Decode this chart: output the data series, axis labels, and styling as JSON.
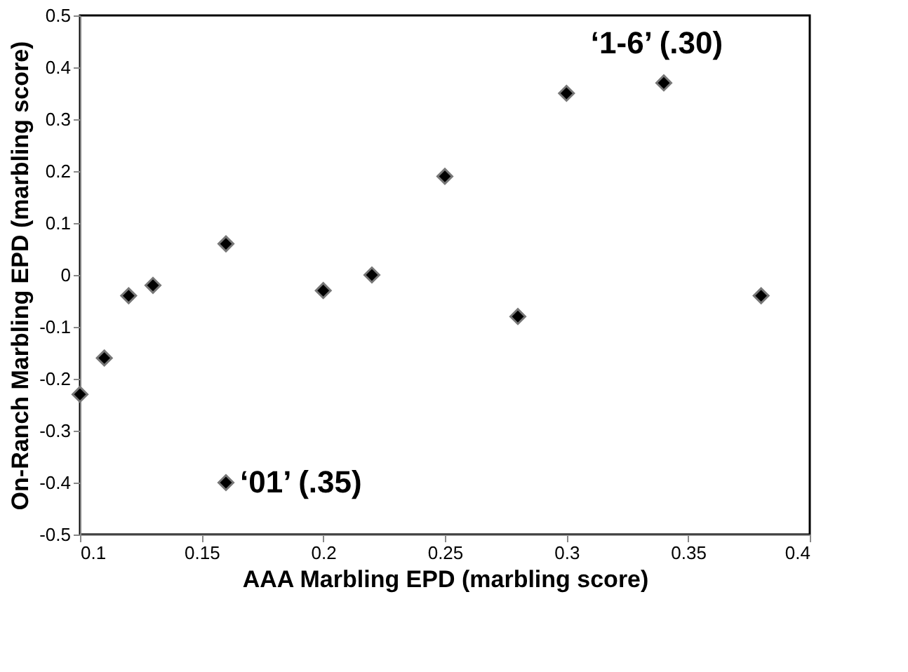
{
  "chart_data": {
    "type": "scatter",
    "xlabel": "AAA Marbling EPD (marbling score)",
    "ylabel": "On-Ranch Marbling EPD (marbling score)",
    "x": [
      0.1,
      0.11,
      0.12,
      0.13,
      0.16,
      0.16,
      0.2,
      0.22,
      0.25,
      0.28,
      0.3,
      0.34,
      0.38
    ],
    "series": [
      {
        "color": "#000000",
        "values": [
          -0.23,
          -0.16,
          -0.04,
          -0.02,
          0.06,
          -0.4,
          -0.03,
          0.0,
          0.19,
          -0.08,
          0.35,
          0.37,
          -0.04
        ]
      }
    ],
    "xlim": [
      0.1,
      0.4
    ],
    "xticks": [
      0.1,
      0.15,
      0.2,
      0.25,
      0.3,
      0.35,
      0.4
    ],
    "ylim": [
      -0.5,
      0.5
    ],
    "yticks": [
      -0.5,
      -0.4,
      -0.3,
      -0.2,
      -0.1,
      0,
      0.1,
      0.2,
      0.3,
      0.4,
      0.5
    ],
    "grid": false,
    "marker": "diamond",
    "annotations": [
      {
        "text": "‘1-6’ (.30)",
        "x": 0.34,
        "y": 0.37
      },
      {
        "text": "‘01’ (.35)",
        "x": 0.16,
        "y": -0.4
      }
    ]
  }
}
